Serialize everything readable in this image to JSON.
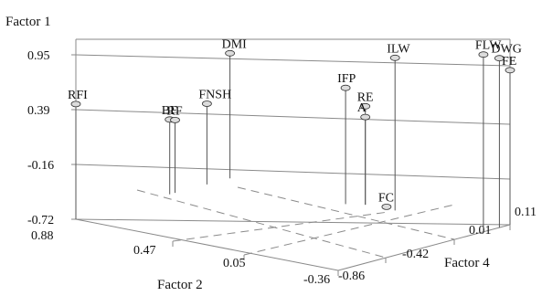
{
  "chart_data": {
    "type": "scatter",
    "title": "",
    "axes": {
      "vertical": {
        "label": "Factor 1",
        "ticks": [
          "0.95",
          "0.39",
          "-0.16",
          "-0.72"
        ],
        "range": [
          -0.72,
          1.1
        ]
      },
      "left_depth": {
        "label": "Factor 2",
        "ticks": [
          "0.88",
          "0.47",
          "0.05",
          "-0.36"
        ],
        "range": [
          -0.36,
          0.88
        ]
      },
      "right_depth": {
        "label": "Factor 4",
        "ticks": [
          "-0.86",
          "-0.42",
          "0.01",
          "0.11"
        ],
        "range": [
          -0.86,
          0.11
        ]
      }
    },
    "grid": true,
    "points": [
      {
        "label": "FLW",
        "factor2": -0.36,
        "factor4": -0.04,
        "factor1": 1.08
      },
      {
        "label": "DWG",
        "factor2": -0.36,
        "factor4": 0.05,
        "factor1": 1.0
      },
      {
        "label": "FE",
        "factor2": -0.36,
        "factor4": 0.11,
        "factor1": 0.85
      },
      {
        "label": "DMI",
        "factor2": 0.88,
        "factor4": 0.01,
        "factor1": 0.55
      },
      {
        "label": "ILW",
        "factor2": 0.1,
        "factor4": 0.01,
        "factor1": 0.83
      },
      {
        "label": "IFP",
        "factor2": 0.3,
        "factor4": -0.03,
        "factor1": 0.46
      },
      {
        "label": "RE",
        "factor2": 0.24,
        "factor4": 0.01,
        "factor1": 0.28
      },
      {
        "label": "A",
        "factor2": 0.24,
        "factor4": 0.01,
        "factor1": 0.17
      },
      {
        "label": "BF",
        "factor2": 0.88,
        "factor4": -0.33,
        "factor1": 0.04
      },
      {
        "label": "RF",
        "factor2": 0.88,
        "factor4": -0.3,
        "factor1": 0.02
      },
      {
        "label": "FNSH",
        "factor2": 0.88,
        "factor4": -0.12,
        "factor1": 0.1
      },
      {
        "label": "RFI",
        "factor2": 0.88,
        "factor4": -0.86,
        "factor1": 0.45
      },
      {
        "label": "FC",
        "factor2": 0.14,
        "factor4": 0.01,
        "factor1": -0.7
      }
    ]
  }
}
